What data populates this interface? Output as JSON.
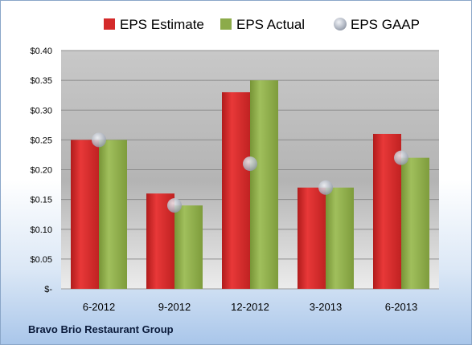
{
  "chart_data": {
    "type": "bar",
    "categories": [
      "6-2012",
      "9-2012",
      "12-2012",
      "3-2013",
      "6-2013"
    ],
    "series": [
      {
        "name": "EPS Estimate",
        "values": [
          0.25,
          0.16,
          0.33,
          0.17,
          0.26
        ],
        "color": "#d42a2a"
      },
      {
        "name": "EPS Actual",
        "values": [
          0.25,
          0.14,
          0.35,
          0.17,
          0.22
        ],
        "color": "#8cab4a"
      },
      {
        "name": "EPS GAAP",
        "values": [
          0.25,
          0.14,
          0.21,
          0.17,
          0.22
        ],
        "color": "#b0b6c2",
        "marker": "circle"
      }
    ],
    "y_ticks": [
      "$-",
      "$0.05",
      "$0.10",
      "$0.15",
      "$0.20",
      "$0.25",
      "$0.30",
      "$0.35",
      "$0.40"
    ],
    "ylim": [
      0,
      0.4
    ],
    "grid": true,
    "legend": "top"
  },
  "footer": {
    "company": "Bravo Brio Restaurant Group"
  }
}
